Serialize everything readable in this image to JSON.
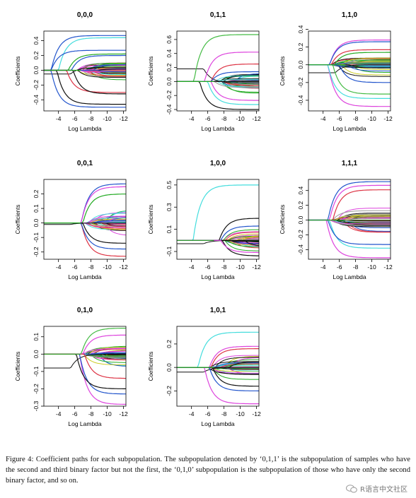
{
  "chart_data": [
    {
      "type": "line",
      "title": "0,0,0",
      "xlabel": "Log Lambda",
      "ylabel": "Coefficients",
      "x_ticks": [
        -4,
        -6,
        -8,
        -10,
        -12
      ],
      "x_tick_labels": [
        "-4",
        "-6",
        "-8",
        "-10",
        "-12"
      ],
      "xlim": [
        -2.2,
        -12.3
      ],
      "y_ticks": [
        -0.4,
        -0.2,
        0.0,
        0.2,
        0.4
      ],
      "y_tick_labels": [
        "-0.4",
        "-0.2",
        "0.0",
        "0.2",
        "0.4"
      ],
      "ylim": [
        -0.55,
        0.53
      ],
      "n_paths": 44,
      "seed": 11,
      "mid_count": 9,
      "paths": [
        [
          0.47,
          -3.1,
          "#2255cc"
        ],
        [
          0.44,
          -4.0,
          "#44dddd"
        ],
        [
          0.27,
          -3.1,
          "#2255cc"
        ],
        [
          0.22,
          -5.2,
          "#22aa22"
        ],
        [
          0.2,
          -5.6,
          "#2255cc"
        ],
        [
          -0.5,
          -3.1,
          "#2255cc"
        ],
        [
          -0.46,
          -3.8,
          "#111111"
        ],
        [
          -0.3,
          -5.0,
          "#dd3344"
        ],
        [
          -0.32,
          -5.8,
          "#111111"
        ]
      ],
      "flat_to": -5.8,
      "early": [
        -0.05,
        0.04
      ],
      "grid": false
    },
    {
      "type": "line",
      "title": "0,1,1",
      "xlabel": "Log Lambda",
      "ylabel": "Coefficients",
      "x_ticks": [
        -4,
        -6,
        -8,
        -10,
        -12
      ],
      "x_tick_labels": [
        "-4",
        "-6",
        "-8",
        "-10",
        "-12"
      ],
      "xlim": [
        -2.2,
        -12.3
      ],
      "y_ticks": [
        -0.4,
        -0.2,
        0.0,
        0.2,
        0.4,
        0.6
      ],
      "y_tick_labels": [
        "-0.4",
        "-0.2",
        "0.0",
        "0.2",
        "0.4",
        "0.6"
      ],
      "ylim": [
        -0.42,
        0.72
      ],
      "n_paths": 38,
      "seed": 23,
      "mid_count": 10,
      "paths": [
        [
          0.67,
          -4.3,
          "#44bb44"
        ],
        [
          0.42,
          -5.6,
          "#dd44dd"
        ],
        [
          0.25,
          -6.4,
          "#dd3344"
        ],
        [
          0.14,
          -6.4,
          "#2255cc"
        ],
        [
          -0.27,
          -6.4,
          "#dd44dd"
        ],
        [
          -0.33,
          -6.0,
          "#44dddd"
        ],
        [
          -0.4,
          -5.0,
          "#111111"
        ]
      ],
      "flat_to": -6.4,
      "early": [
        0.18,
        -0.02
      ],
      "grid": false
    },
    {
      "type": "line",
      "title": "1,1,0",
      "xlabel": "Log Lambda",
      "ylabel": "Coefficients",
      "x_ticks": [
        -4,
        -6,
        -8,
        -10,
        -12
      ],
      "x_tick_labels": [
        "-4",
        "-6",
        "-8",
        "-10",
        "-12"
      ],
      "xlim": [
        -2.2,
        -12.3
      ],
      "y_ticks": [
        -0.4,
        -0.2,
        0.0,
        0.2,
        0.4
      ],
      "y_tick_labels": [
        "-0.4",
        "-0.2",
        "0.0",
        "0.2",
        "0.4"
      ],
      "ylim": [
        -0.52,
        0.38
      ],
      "n_paths": 46,
      "seed": 37,
      "mid_count": 12,
      "paths": [
        [
          0.28,
          -4.8,
          "#dd44dd"
        ],
        [
          0.26,
          -4.8,
          "#2255cc"
        ],
        [
          0.17,
          -5.0,
          "#dd3344"
        ],
        [
          0.14,
          -5.4,
          "#22aa22"
        ],
        [
          -0.47,
          -4.6,
          "#dd44dd"
        ],
        [
          -0.38,
          -4.6,
          "#44dddd"
        ],
        [
          -0.33,
          -5.2,
          "#44bb44"
        ],
        [
          -0.2,
          -6.0,
          "#2255cc"
        ]
      ],
      "flat_to": -4.6,
      "early": [
        -0.09,
        0.0
      ],
      "grid": false
    },
    {
      "type": "line",
      "title": "0,0,1",
      "xlabel": "Log Lambda",
      "ylabel": "Coefficients",
      "x_ticks": [
        -4,
        -6,
        -8,
        -10,
        -12
      ],
      "x_tick_labels": [
        "-4",
        "-6",
        "-8",
        "-10",
        "-12"
      ],
      "xlim": [
        -2.2,
        -12.3
      ],
      "y_ticks": [
        -0.2,
        -0.1,
        0.0,
        0.1,
        0.2
      ],
      "y_tick_labels": [
        "-0.2",
        "-0.1",
        "0.0",
        "0.1",
        "0.2"
      ],
      "ylim": [
        -0.25,
        0.3
      ],
      "n_paths": 46,
      "seed": 41,
      "mid_count": 12,
      "paths": [
        [
          0.27,
          -6.8,
          "#2255cc"
        ],
        [
          0.25,
          -6.8,
          "#dd44dd"
        ],
        [
          0.2,
          -7.0,
          "#22aa22"
        ],
        [
          -0.23,
          -6.8,
          "#dd3344"
        ],
        [
          -0.18,
          -6.8,
          "#2255cc"
        ],
        [
          -0.14,
          -7.0,
          "#111111"
        ]
      ],
      "flat_to": -6.8,
      "early": [
        -0.01,
        0.0
      ],
      "grid": false
    },
    {
      "type": "line",
      "title": "1,0,0",
      "xlabel": "Log Lambda",
      "ylabel": "Coefficients",
      "x_ticks": [
        -4,
        -6,
        -8,
        -10,
        -12
      ],
      "x_tick_labels": [
        "-4",
        "-6",
        "-8",
        "-10",
        "-12"
      ],
      "xlim": [
        -2.2,
        -12.3
      ],
      "y_ticks": [
        -0.1,
        0.1,
        0.3,
        0.5
      ],
      "y_tick_labels": [
        "-0.1",
        "0.1",
        "0.3",
        "0.5"
      ],
      "ylim": [
        -0.17,
        0.55
      ],
      "n_paths": 40,
      "seed": 53,
      "mid_count": 8,
      "paths": [
        [
          0.5,
          -4.2,
          "#44dddd"
        ],
        [
          0.2,
          -7.4,
          "#111111"
        ],
        [
          0.13,
          -7.6,
          "#2255cc"
        ],
        [
          -0.14,
          -7.8,
          "#111111"
        ],
        [
          -0.11,
          -7.6,
          "#dd44dd"
        ]
      ],
      "flat_to": -7.4,
      "early": [
        -0.03,
        0.0
      ],
      "grid": false
    },
    {
      "type": "line",
      "title": "1,1,1",
      "xlabel": "Log Lambda",
      "ylabel": "Coefficients",
      "x_ticks": [
        -4,
        -6,
        -8,
        -10,
        -12
      ],
      "x_tick_labels": [
        "-4",
        "-6",
        "-8",
        "-10",
        "-12"
      ],
      "xlim": [
        -2.2,
        -12.3
      ],
      "y_ticks": [
        -0.4,
        -0.2,
        0.0,
        0.2,
        0.4
      ],
      "y_tick_labels": [
        "-0.4",
        "-0.2",
        "0.0",
        "0.2",
        "0.4"
      ],
      "ylim": [
        -0.53,
        0.55
      ],
      "n_paths": 46,
      "seed": 67,
      "mid_count": 14,
      "paths": [
        [
          0.52,
          -4.6,
          "#2255cc"
        ],
        [
          0.47,
          -4.8,
          "#dd44dd"
        ],
        [
          0.41,
          -5.2,
          "#dd3344"
        ],
        [
          -0.51,
          -4.4,
          "#dd44dd"
        ],
        [
          -0.38,
          -4.8,
          "#44dddd"
        ],
        [
          -0.33,
          -4.6,
          "#2255cc"
        ]
      ],
      "flat_to": -4.4,
      "early": [
        0.0,
        -0.04
      ],
      "grid": false
    },
    {
      "type": "line",
      "title": "0,1,0",
      "xlabel": "Log Lambda",
      "ylabel": "Coefficients",
      "x_ticks": [
        -4,
        -6,
        -8,
        -10,
        -12
      ],
      "x_tick_labels": [
        "-4",
        "-6",
        "-8",
        "-10",
        "-12"
      ],
      "xlim": [
        -2.2,
        -12.3
      ],
      "y_ticks": [
        -0.3,
        -0.2,
        -0.1,
        0.0,
        0.1
      ],
      "y_tick_labels": [
        "-0.3",
        "-0.2",
        "-0.1",
        "0.0",
        "0.1"
      ],
      "ylim": [
        -0.3,
        0.16
      ],
      "n_paths": 44,
      "seed": 79,
      "mid_count": 10,
      "paths": [
        [
          0.15,
          -6.8,
          "#44bb44"
        ],
        [
          0.11,
          -7.0,
          "#dd44dd"
        ],
        [
          -0.29,
          -6.6,
          "#dd44dd"
        ],
        [
          -0.23,
          -6.6,
          "#2255cc"
        ],
        [
          -0.2,
          -6.2,
          "#111111"
        ],
        [
          -0.14,
          -7.2,
          "#dd3344"
        ]
      ],
      "flat_to": -6.6,
      "early": [
        -0.08,
        0.0
      ],
      "grid": false
    },
    {
      "type": "line",
      "title": "1,0,1",
      "xlabel": "Log Lambda",
      "ylabel": "Coefficients",
      "x_ticks": [
        -4,
        -6,
        -8,
        -10,
        -12
      ],
      "x_tick_labels": [
        "-4",
        "-6",
        "-8",
        "-10",
        "-12"
      ],
      "xlim": [
        -2.2,
        -12.3
      ],
      "y_ticks": [
        -0.2,
        0.0,
        0.2
      ],
      "y_tick_labels": [
        "-0.2",
        "0.0",
        "0.2"
      ],
      "ylim": [
        -0.33,
        0.35
      ],
      "n_paths": 42,
      "seed": 83,
      "mid_count": 12,
      "paths": [
        [
          0.3,
          -4.8,
          "#44dddd"
        ],
        [
          0.18,
          -6.2,
          "#dd44dd"
        ],
        [
          0.16,
          -6.4,
          "#dd3344"
        ],
        [
          -0.31,
          -5.6,
          "#dd44dd"
        ],
        [
          -0.2,
          -6.2,
          "#2255cc"
        ],
        [
          -0.16,
          -6.6,
          "#111111"
        ]
      ],
      "flat_to": -5.6,
      "early": [
        -0.04,
        0.0
      ],
      "grid": false
    }
  ],
  "caption": {
    "text": "Figure 4: Coefficient paths for each subpopulation. The subpopulation denoted by ‘0,1,1’ is the subpopulation of samples who have the second and third binary factor but not the first, the ‘0,1,0’ subpopulation is the subpopulation of those who have only the second binary factor, and so on."
  },
  "watermark": {
    "text": "R语言中文社区"
  },
  "palette": [
    "#111111",
    "#dd3344",
    "#22aa22",
    "#2255cc",
    "#44dddd",
    "#dd44dd",
    "#cccc22",
    "#999999"
  ]
}
